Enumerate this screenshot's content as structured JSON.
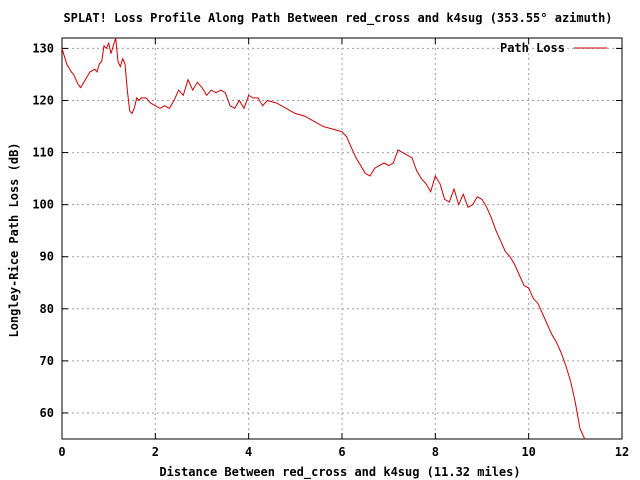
{
  "chart_data": {
    "type": "line",
    "title": "SPLAT! Loss Profile Along Path Between red_cross and k4sug (353.55° azimuth)",
    "xlabel": "Distance Between red_cross and k4sug (11.32 miles)",
    "ylabel": "Longley-Rice Path Loss (dB)",
    "xlim": [
      0,
      12
    ],
    "ylim": [
      55,
      132
    ],
    "xticks": [
      0,
      2,
      4,
      6,
      8,
      10,
      12
    ],
    "yticks": [
      60,
      70,
      80,
      90,
      100,
      110,
      120,
      130
    ],
    "grid": true,
    "legend_position": "top-right",
    "colors": {
      "series": "#cc0000",
      "axis": "#000000",
      "grid": "#a0a0a0"
    },
    "series": [
      {
        "name": "Path Loss",
        "x": [
          0.0,
          0.1,
          0.2,
          0.25,
          0.35,
          0.4,
          0.5,
          0.6,
          0.7,
          0.75,
          0.8,
          0.85,
          0.9,
          0.95,
          1.0,
          1.05,
          1.1,
          1.15,
          1.2,
          1.25,
          1.3,
          1.35,
          1.4,
          1.45,
          1.5,
          1.55,
          1.6,
          1.65,
          1.7,
          1.8,
          1.9,
          2.0,
          2.1,
          2.2,
          2.3,
          2.4,
          2.5,
          2.6,
          2.7,
          2.8,
          2.9,
          3.0,
          3.1,
          3.2,
          3.3,
          3.4,
          3.5,
          3.6,
          3.7,
          3.8,
          3.9,
          4.0,
          4.1,
          4.2,
          4.3,
          4.4,
          4.6,
          4.8,
          5.0,
          5.2,
          5.4,
          5.6,
          5.8,
          6.0,
          6.1,
          6.2,
          6.3,
          6.4,
          6.5,
          6.6,
          6.7,
          6.8,
          6.9,
          7.0,
          7.1,
          7.2,
          7.3,
          7.4,
          7.5,
          7.6,
          7.7,
          7.8,
          7.9,
          8.0,
          8.1,
          8.2,
          8.3,
          8.4,
          8.5,
          8.6,
          8.7,
          8.8,
          8.9,
          9.0,
          9.1,
          9.2,
          9.3,
          9.4,
          9.5,
          9.6,
          9.7,
          9.8,
          9.9,
          10.0,
          10.1,
          10.2,
          10.3,
          10.4,
          10.5,
          10.6,
          10.7,
          10.8,
          10.9,
          11.0,
          11.1,
          11.2
        ],
        "values": [
          130.0,
          127.0,
          125.5,
          125.0,
          123.0,
          122.5,
          124.0,
          125.5,
          126.0,
          125.5,
          127.0,
          127.5,
          130.5,
          130.0,
          131.0,
          129.0,
          130.5,
          132.0,
          127.5,
          126.5,
          128.0,
          127.0,
          122.0,
          118.0,
          117.5,
          118.5,
          120.5,
          120.0,
          120.5,
          120.5,
          119.5,
          119.0,
          118.5,
          119.0,
          118.5,
          120.0,
          122.0,
          121.0,
          124.0,
          122.0,
          123.5,
          122.5,
          121.0,
          122.0,
          121.5,
          122.0,
          121.5,
          119.0,
          118.5,
          120.0,
          118.5,
          121.0,
          120.5,
          120.5,
          119.0,
          120.0,
          119.5,
          118.5,
          117.5,
          117.0,
          116.0,
          115.0,
          114.5,
          114.0,
          113.0,
          111.0,
          109.0,
          107.5,
          106.0,
          105.5,
          107.0,
          107.5,
          108.0,
          107.5,
          108.0,
          110.5,
          110.0,
          109.5,
          109.0,
          106.5,
          105.0,
          104.0,
          102.5,
          105.5,
          104.0,
          101.0,
          100.5,
          103.0,
          100.0,
          102.0,
          99.5,
          100.0,
          101.5,
          101.0,
          99.5,
          97.5,
          95.0,
          93.0,
          91.0,
          90.0,
          88.5,
          86.5,
          84.5,
          84.0,
          82.0,
          81.0,
          79.0,
          77.0,
          75.0,
          73.5,
          71.5,
          69.0,
          66.0,
          62.0,
          57.0,
          55.0
        ]
      }
    ]
  }
}
